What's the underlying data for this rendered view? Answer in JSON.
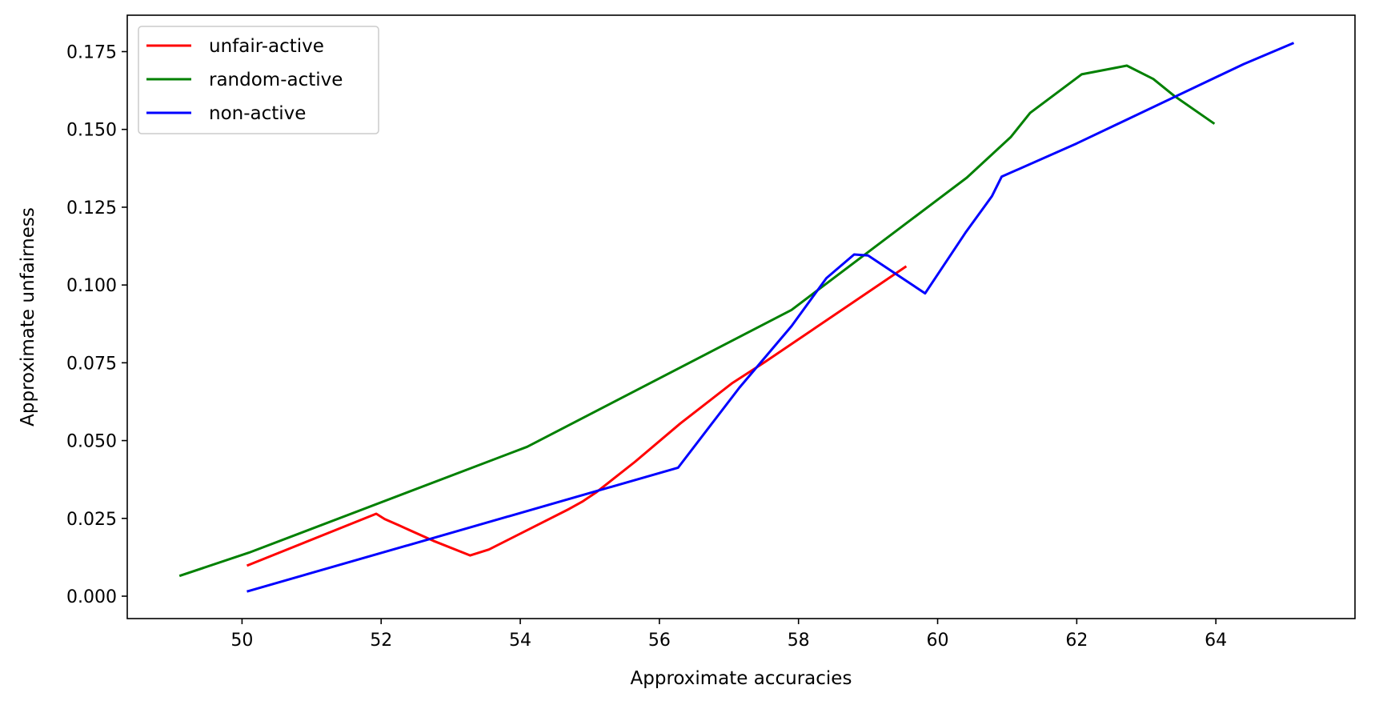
{
  "chart_data": {
    "type": "line",
    "title": "",
    "xlabel": "Approximate accuracies",
    "ylabel": "Approximate unfairness",
    "xlim": [
      48.35,
      66.0
    ],
    "ylim": [
      -0.0072,
      0.1867
    ],
    "x_ticks": [
      50,
      52,
      54,
      56,
      58,
      60,
      62,
      64
    ],
    "x_tick_labels": [
      "50",
      "52",
      "54",
      "56",
      "58",
      "60",
      "62",
      "64"
    ],
    "y_ticks": [
      0.0,
      0.025,
      0.05,
      0.075,
      0.1,
      0.125,
      0.15,
      0.175
    ],
    "y_tick_labels": [
      "0.000",
      "0.025",
      "0.050",
      "0.075",
      "0.100",
      "0.125",
      "0.150",
      "0.175"
    ],
    "grid": false,
    "legend_position": "top-left",
    "series": [
      {
        "name": "unfair-active",
        "color": "#ff0000",
        "x": [
          50.07,
          51.93,
          52.05,
          52.25,
          52.75,
          53.28,
          53.55,
          54.7,
          54.9,
          55.1,
          55.65,
          56.3,
          57.05,
          57.5,
          59.55
        ],
        "y": [
          0.0098,
          0.0265,
          0.0248,
          0.0228,
          0.0178,
          0.0131,
          0.015,
          0.028,
          0.0305,
          0.0335,
          0.0432,
          0.0555,
          0.0685,
          0.075,
          0.106
        ]
      },
      {
        "name": "random-active",
        "color": "#008000",
        "x": [
          49.1,
          50.1,
          54.1,
          57.9,
          60.42,
          61.05,
          61.33,
          62.07,
          62.72,
          63.1,
          63.4,
          63.98
        ],
        "y": [
          0.0065,
          0.014,
          0.048,
          0.092,
          0.1345,
          0.1475,
          0.1553,
          0.1677,
          0.1705,
          0.1662,
          0.1608,
          0.1518
        ]
      },
      {
        "name": "non-active",
        "color": "#0000ff",
        "x": [
          50.07,
          56.27,
          57.15,
          57.9,
          58.4,
          58.8,
          59.0,
          59.82,
          60.4,
          60.78,
          60.92,
          62.0,
          64.4,
          65.12
        ],
        "y": [
          0.0015,
          0.0413,
          0.067,
          0.0868,
          0.1022,
          0.1098,
          0.1095,
          0.0973,
          0.1168,
          0.1285,
          0.1348,
          0.1455,
          0.171,
          0.1778
        ]
      }
    ]
  }
}
